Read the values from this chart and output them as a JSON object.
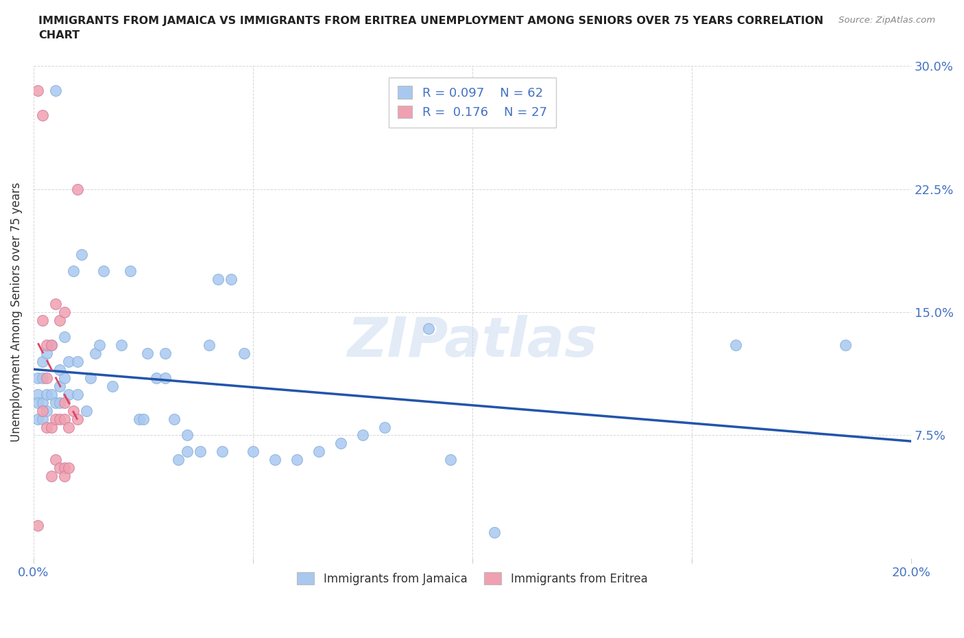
{
  "title": "IMMIGRANTS FROM JAMAICA VS IMMIGRANTS FROM ERITREA UNEMPLOYMENT AMONG SENIORS OVER 75 YEARS CORRELATION\nCHART",
  "source": "Source: ZipAtlas.com",
  "ylabel": "Unemployment Among Seniors over 75 years",
  "legend_labels": [
    "Immigrants from Jamaica",
    "Immigrants from Eritrea"
  ],
  "legend_R": [
    0.097,
    0.176
  ],
  "legend_N": [
    62,
    27
  ],
  "xlim": [
    0.0,
    0.2
  ],
  "ylim": [
    0.0,
    0.3
  ],
  "xticks": [
    0.0,
    0.05,
    0.1,
    0.15,
    0.2
  ],
  "yticks": [
    0.0,
    0.075,
    0.15,
    0.225,
    0.3
  ],
  "blue_color": "#A8C8F0",
  "pink_color": "#F0A0B0",
  "blue_line_color": "#2255AA",
  "pink_line_color": "#DD4466",
  "watermark": "ZIPatlas",
  "jamaica_x": [
    0.001,
    0.001,
    0.001,
    0.001,
    0.002,
    0.002,
    0.002,
    0.002,
    0.003,
    0.003,
    0.003,
    0.004,
    0.004,
    0.005,
    0.005,
    0.006,
    0.006,
    0.006,
    0.007,
    0.007,
    0.008,
    0.008,
    0.009,
    0.01,
    0.01,
    0.011,
    0.012,
    0.013,
    0.014,
    0.015,
    0.016,
    0.018,
    0.02,
    0.022,
    0.024,
    0.025,
    0.026,
    0.028,
    0.03,
    0.03,
    0.032,
    0.033,
    0.035,
    0.035,
    0.038,
    0.04,
    0.042,
    0.043,
    0.045,
    0.048,
    0.05,
    0.055,
    0.06,
    0.065,
    0.07,
    0.075,
    0.08,
    0.09,
    0.095,
    0.105,
    0.16,
    0.185
  ],
  "jamaica_y": [
    0.11,
    0.1,
    0.095,
    0.085,
    0.12,
    0.095,
    0.085,
    0.11,
    0.1,
    0.09,
    0.125,
    0.13,
    0.1,
    0.285,
    0.095,
    0.095,
    0.115,
    0.105,
    0.11,
    0.135,
    0.12,
    0.1,
    0.175,
    0.12,
    0.1,
    0.185,
    0.09,
    0.11,
    0.125,
    0.13,
    0.175,
    0.105,
    0.13,
    0.175,
    0.085,
    0.085,
    0.125,
    0.11,
    0.125,
    0.11,
    0.085,
    0.06,
    0.075,
    0.065,
    0.065,
    0.13,
    0.17,
    0.065,
    0.17,
    0.125,
    0.065,
    0.06,
    0.06,
    0.065,
    0.07,
    0.075,
    0.08,
    0.14,
    0.06,
    0.016,
    0.13,
    0.13
  ],
  "eritrea_x": [
    0.001,
    0.001,
    0.002,
    0.002,
    0.002,
    0.003,
    0.003,
    0.003,
    0.004,
    0.004,
    0.004,
    0.005,
    0.005,
    0.005,
    0.006,
    0.006,
    0.006,
    0.007,
    0.007,
    0.007,
    0.007,
    0.007,
    0.008,
    0.008,
    0.009,
    0.01,
    0.01
  ],
  "eritrea_y": [
    0.285,
    0.02,
    0.27,
    0.145,
    0.09,
    0.13,
    0.11,
    0.08,
    0.13,
    0.08,
    0.05,
    0.155,
    0.085,
    0.06,
    0.145,
    0.085,
    0.055,
    0.15,
    0.095,
    0.085,
    0.055,
    0.05,
    0.08,
    0.055,
    0.09,
    0.085,
    0.225
  ]
}
